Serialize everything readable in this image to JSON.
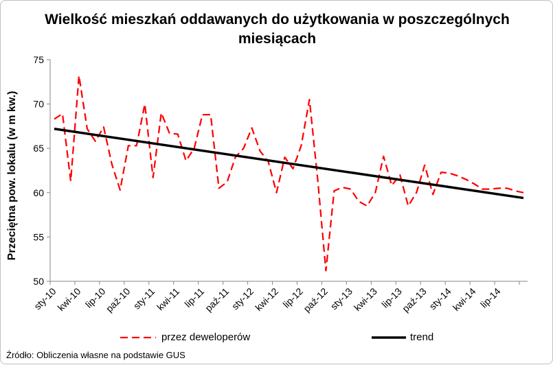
{
  "chart_data": {
    "type": "line",
    "title": "Wielkość mieszkań oddawanych do użytkowania  w poszczególnych miesiącach",
    "ylabel": "Przeciętna pow. lokalu (w m kw.)",
    "ylim": [
      50,
      75
    ],
    "yticks": [
      50,
      55,
      60,
      65,
      70,
      75
    ],
    "x_labels": [
      "sty-10",
      "kwi-10",
      "lip-10",
      "paź-10",
      "sty-11",
      "kwi-11",
      "lip-11",
      "paź-11",
      "sty-12",
      "kwi-12",
      "lip-12",
      "paź-12",
      "sty-13",
      "kwi-13",
      "lip-13",
      "paź-13",
      "sty-14",
      "kwi-14",
      "lip-14"
    ],
    "label_every": 3,
    "grid": false,
    "legend_position": "bottom",
    "series": [
      {
        "name": "przez deweloperów",
        "style": "dashed",
        "color": "#ff0000",
        "values": [
          68.3,
          68.9,
          61.3,
          73.2,
          67.2,
          65.8,
          67.4,
          63.2,
          60.3,
          65.3,
          65.3,
          70.0,
          61.7,
          69.0,
          66.7,
          66.6,
          63.6,
          65.0,
          68.8,
          68.8,
          60.5,
          61.2,
          64.0,
          65.0,
          67.3,
          64.7,
          63.5,
          60.0,
          64.0,
          62.7,
          65.3,
          70.5,
          61.5,
          51.2,
          60.2,
          60.6,
          60.4,
          59.0,
          58.5,
          60.0,
          64.1,
          60.8,
          62.0,
          58.5,
          60.0,
          63.1,
          59.8,
          62.3,
          62.2,
          61.9,
          61.5,
          61.0,
          60.4,
          60.4,
          60.5,
          60.5,
          60.2,
          60.0
        ]
      },
      {
        "name": "trend",
        "style": "solid",
        "color": "#000000",
        "values_start_end": [
          67.2,
          59.4
        ]
      }
    ]
  },
  "source": "Źródło: Obliczenia własne na podstawie GUS"
}
